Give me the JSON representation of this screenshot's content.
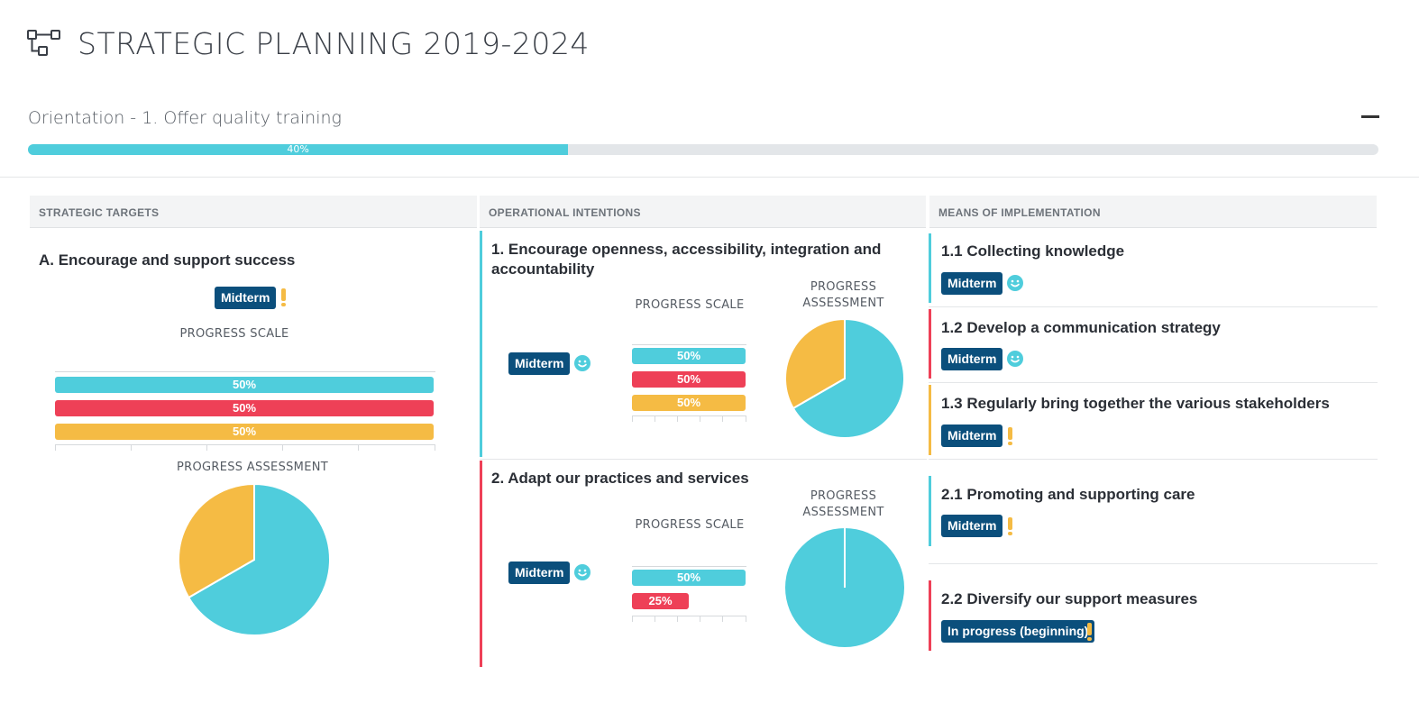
{
  "header": {
    "title": "STRATEGIC PLANNING 2019-2024",
    "icon": "hierarchy-icon"
  },
  "orientation": {
    "title": "Orientation - 1. Offer quality training",
    "progress_label": "40%",
    "progress_value": 0.4,
    "collapse_icon": "minus-icon"
  },
  "columns": {
    "strategic_targets": "STRATEGIC TARGETS",
    "operational_intentions": "OPERATIONAL INTENTIONS",
    "means_of_implementation": "MEANS OF IMPLEMENTATION"
  },
  "colors": {
    "teal": "#4fcddc",
    "red": "#ee4057",
    "yellow": "#f5bb44",
    "badge": "#0b4f7c"
  },
  "target": {
    "title": "A. Encourage and support success",
    "badge": "Midterm",
    "status_icon": "exclamation-icon",
    "scale_label": "PROGRESS SCALE",
    "assessment_label": "PROGRESS ASSESSMENT",
    "bars": [
      {
        "label": "50%",
        "value": 50,
        "color": "teal"
      },
      {
        "label": "50%",
        "value": 50,
        "color": "red"
      },
      {
        "label": "50%",
        "value": 50,
        "color": "yellow"
      }
    ],
    "pie": [
      {
        "label": "teal",
        "value": 2
      },
      {
        "label": "yellow",
        "value": 1
      }
    ]
  },
  "intentions": [
    {
      "title": "1. Encourage openness, accessibility, integration and accountability",
      "badge": "Midterm",
      "status_icon": "smiley-icon",
      "scale_label": "PROGRESS SCALE",
      "assessment_label_1": "PROGRESS",
      "assessment_label_2": "ASSESSMENT",
      "bars": [
        {
          "label": "50%",
          "value": 50,
          "color": "teal"
        },
        {
          "label": "50%",
          "value": 50,
          "color": "red"
        },
        {
          "label": "50%",
          "value": 50,
          "color": "yellow"
        }
      ],
      "pie": [
        {
          "label": "teal",
          "value": 2
        },
        {
          "label": "yellow",
          "value": 1
        }
      ]
    },
    {
      "title": "2. Adapt our practices and services",
      "badge": "Midterm",
      "status_icon": "smiley-icon",
      "scale_label": "PROGRESS SCALE",
      "assessment_label_1": "PROGRESS",
      "assessment_label_2": "ASSESSMENT",
      "bars": [
        {
          "label": "50%",
          "value": 50,
          "color": "teal"
        },
        {
          "label": "25%",
          "value": 25,
          "color": "red"
        }
      ],
      "pie": [
        {
          "label": "teal",
          "value": 1
        }
      ]
    }
  ],
  "means": [
    {
      "title": "1.1 Collecting knowledge",
      "badge": "Midterm",
      "status_icon": "smiley-icon",
      "color": "teal"
    },
    {
      "title": "1.2 Develop a communication strategy",
      "badge": "Midterm",
      "status_icon": "smiley-icon",
      "color": "red"
    },
    {
      "title": "1.3 Regularly bring together the various stakeholders",
      "badge": "Midterm",
      "status_icon": "exclamation-icon",
      "color": "yellow"
    },
    {
      "title": "2.1 Promoting and supporting care",
      "badge": "Midterm",
      "status_icon": "exclamation-icon",
      "color": "teal"
    },
    {
      "title": "2.2 Diversify our support measures",
      "badge": "In progress (beginning)",
      "status_icon": "exclamation-icon",
      "color": "red"
    }
  ]
}
